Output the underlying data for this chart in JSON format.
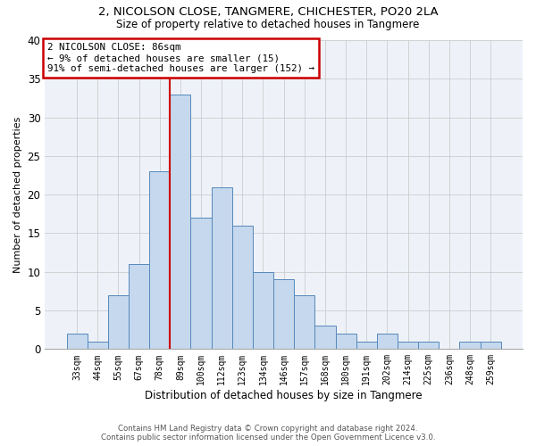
{
  "title": "2, NICOLSON CLOSE, TANGMERE, CHICHESTER, PO20 2LA",
  "subtitle": "Size of property relative to detached houses in Tangmere",
  "xlabel": "Distribution of detached houses by size in Tangmere",
  "ylabel": "Number of detached properties",
  "bar_labels": [
    "33sqm",
    "44sqm",
    "55sqm",
    "67sqm",
    "78sqm",
    "89sqm",
    "100sqm",
    "112sqm",
    "123sqm",
    "134sqm",
    "146sqm",
    "157sqm",
    "168sqm",
    "180sqm",
    "191sqm",
    "202sqm",
    "214sqm",
    "225sqm",
    "236sqm",
    "248sqm",
    "259sqm"
  ],
  "bar_values": [
    2,
    1,
    7,
    11,
    23,
    33,
    17,
    21,
    16,
    10,
    9,
    7,
    3,
    2,
    1,
    2,
    1,
    1,
    0,
    1,
    1
  ],
  "bar_color": "#c5d8ed",
  "bar_edge_color": "#5588bb",
  "grid_color": "#cccccc",
  "annotation_line1": "2 NICOLSON CLOSE: 86sqm",
  "annotation_line2": "← 9% of detached houses are smaller (15)",
  "annotation_line3": "91% of semi-detached houses are larger (152) →",
  "red_line_index": 5,
  "red_line_color": "#cc0000",
  "annotation_rect_color": "#cc0000",
  "ylim": [
    0,
    40
  ],
  "yticks": [
    0,
    5,
    10,
    15,
    20,
    25,
    30,
    35,
    40
  ],
  "footer_line1": "Contains HM Land Registry data © Crown copyright and database right 2024.",
  "footer_line2": "Contains public sector information licensed under the Open Government Licence v3.0.",
  "background_color": "#eef2f8"
}
